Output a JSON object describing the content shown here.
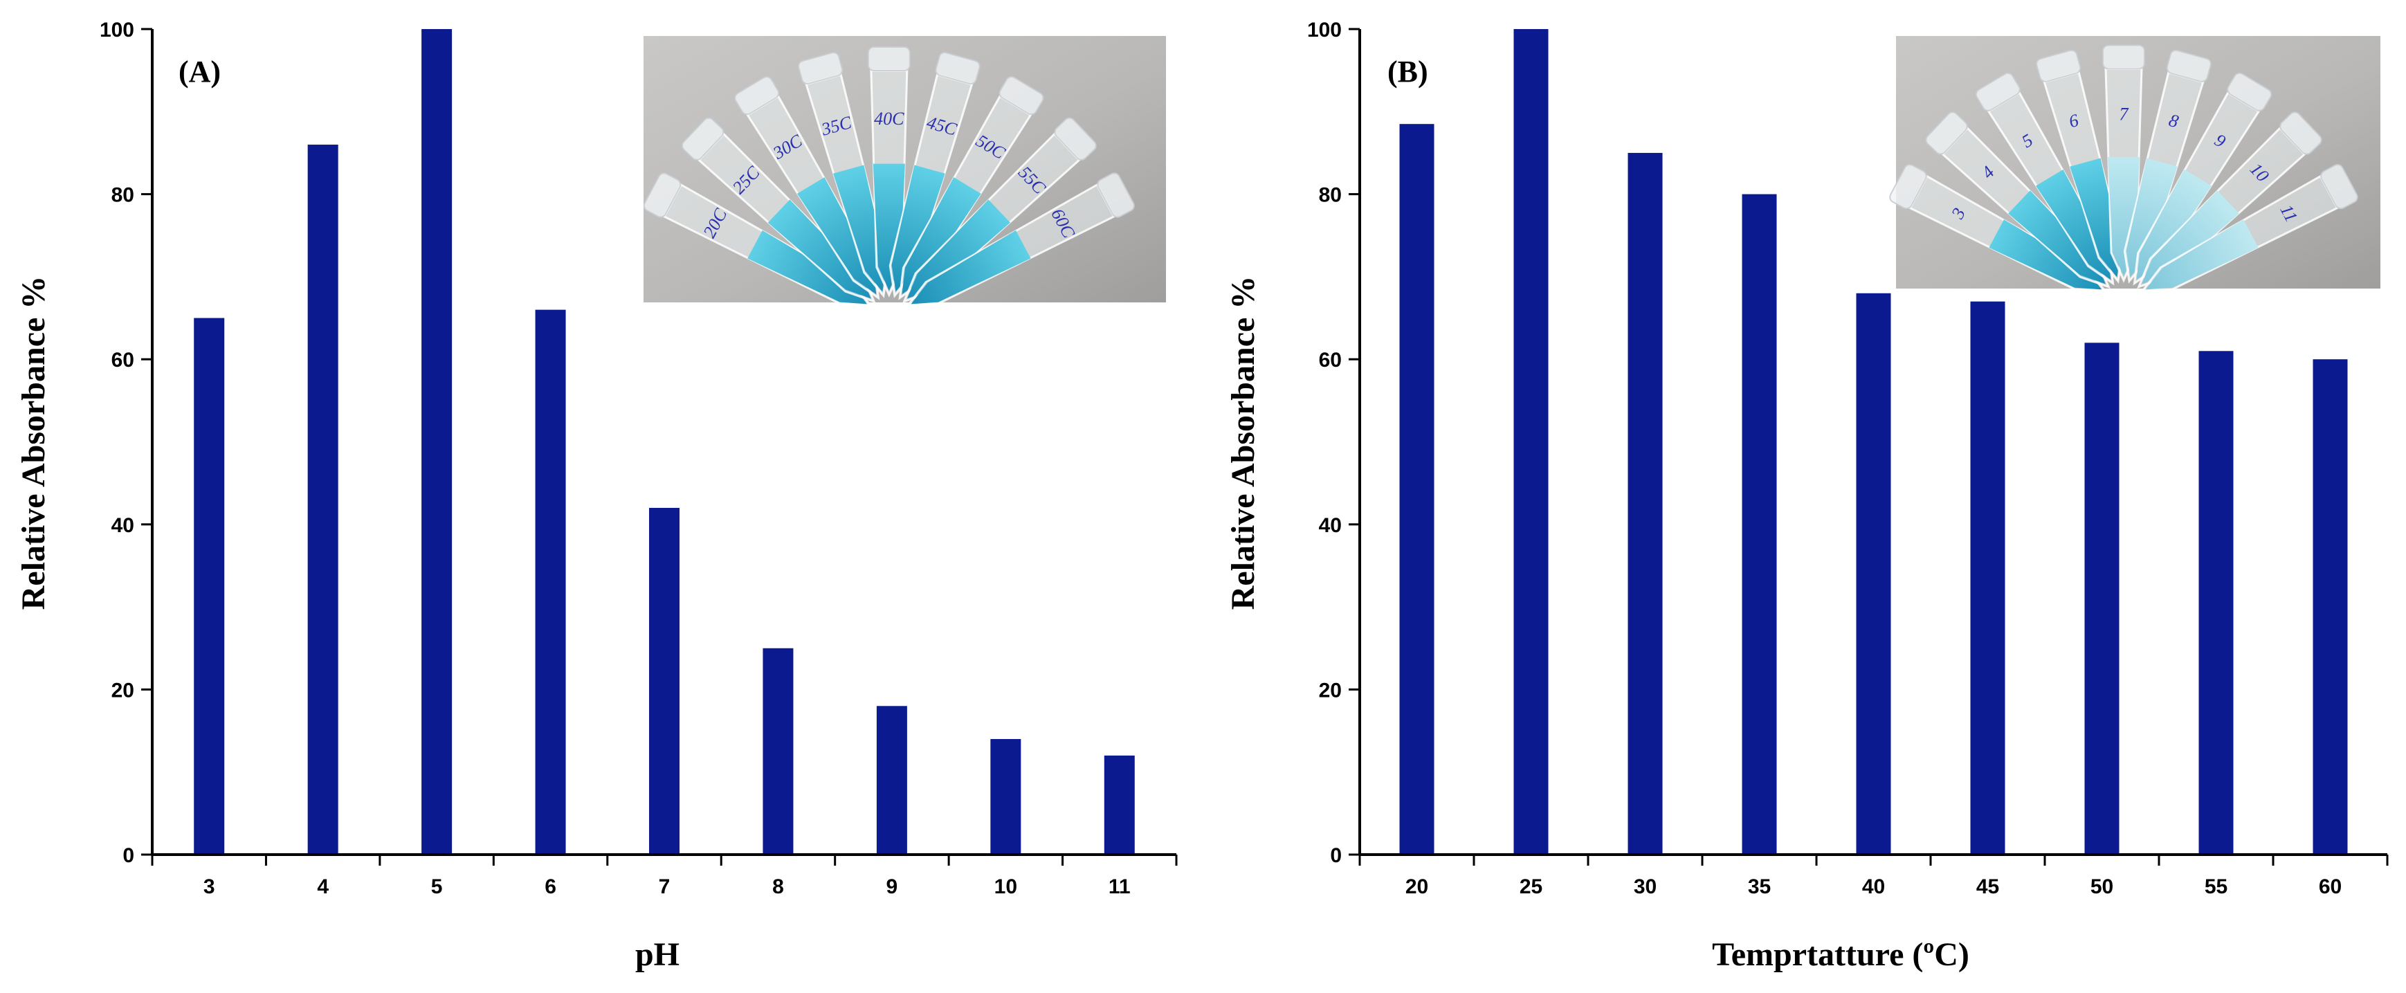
{
  "figure": {
    "panels": [
      "A",
      "B"
    ]
  },
  "chart_data": [
    {
      "type": "bar",
      "panel_label": "(A)",
      "title": "",
      "xlabel": "pH",
      "ylabel": "Relative Absorbance %",
      "categories": [
        "3",
        "4",
        "5",
        "6",
        "7",
        "8",
        "9",
        "10",
        "11"
      ],
      "values": [
        65,
        86,
        100,
        66,
        42,
        25,
        18,
        14,
        12
      ],
      "ylim": [
        0,
        100
      ],
      "yticks": [
        0,
        20,
        40,
        60,
        80,
        100
      ],
      "bar_color": "#0b1a8f",
      "grid": false,
      "inset": {
        "kind": "photo",
        "subject": "vials-blue-solution",
        "labels": [
          "20C",
          "25C",
          "30C",
          "35C",
          "40C",
          "45C",
          "50C",
          "55C",
          "60C"
        ]
      }
    },
    {
      "type": "bar",
      "panel_label": "(B)",
      "title": "",
      "xlabel": "Temprtatture (ºC)",
      "ylabel": "Relative Absorbance %",
      "categories": [
        "20",
        "25",
        "30",
        "35",
        "40",
        "45",
        "50",
        "55",
        "60"
      ],
      "values": [
        88.5,
        100,
        85,
        80,
        68,
        67,
        62,
        61,
        60
      ],
      "ylim": [
        0,
        100
      ],
      "yticks": [
        0,
        20,
        40,
        60,
        80,
        100
      ],
      "bar_color": "#0b1a8f",
      "grid": false,
      "inset": {
        "kind": "photo",
        "subject": "vials-blue-solution",
        "labels": [
          "3",
          "4",
          "5",
          "6",
          "7",
          "8",
          "9",
          "10",
          "11"
        ]
      }
    }
  ]
}
